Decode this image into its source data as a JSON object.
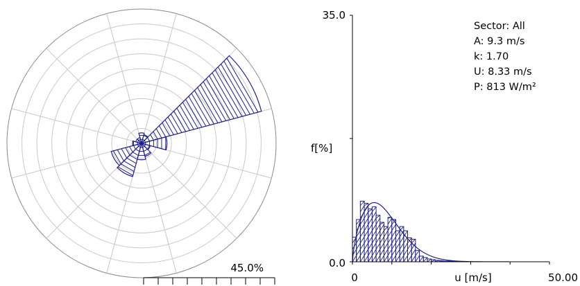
{
  "chart_data": [
    {
      "type": "rose",
      "sector_count": 12,
      "ring_count": 9,
      "scale_label": "45.0%",
      "scale_max": 45.0,
      "sectors": [
        {
          "direction_deg": 0,
          "frequency": 3.5
        },
        {
          "direction_deg": 30,
          "frequency": 3.0
        },
        {
          "direction_deg": 60,
          "frequency": 41.5
        },
        {
          "direction_deg": 90,
          "frequency": 8.5
        },
        {
          "direction_deg": 120,
          "frequency": 3.0
        },
        {
          "direction_deg": 150,
          "frequency": 4.5
        },
        {
          "direction_deg": 180,
          "frequency": 5.5
        },
        {
          "direction_deg": 210,
          "frequency": 11.5
        },
        {
          "direction_deg": 240,
          "frequency": 10.5
        },
        {
          "direction_deg": 270,
          "frequency": 3.0
        },
        {
          "direction_deg": 300,
          "frequency": 2.0
        },
        {
          "direction_deg": 330,
          "frequency": 2.0
        }
      ],
      "color": "#1f1f8f"
    },
    {
      "type": "bar",
      "ylabel": "f[%]",
      "xlabel": "u [m/s]",
      "ylim": [
        0,
        35.0
      ],
      "xlim": [
        0,
        50
      ],
      "y_tick_labels": [
        "0.0",
        "35.0"
      ],
      "x_tick_labels": [
        "0",
        "50.00"
      ],
      "bins": [
        {
          "u": 0,
          "f": 3.5
        },
        {
          "u": 1,
          "f": 6.0
        },
        {
          "u": 2,
          "f": 8.6
        },
        {
          "u": 3,
          "f": 8.3
        },
        {
          "u": 4,
          "f": 7.5
        },
        {
          "u": 5,
          "f": 7.8
        },
        {
          "u": 6,
          "f": 6.6
        },
        {
          "u": 7,
          "f": 5.6
        },
        {
          "u": 8,
          "f": 5.0
        },
        {
          "u": 9,
          "f": 6.3
        },
        {
          "u": 10,
          "f": 6.0
        },
        {
          "u": 11,
          "f": 4.4
        },
        {
          "u": 12,
          "f": 5.0
        },
        {
          "u": 13,
          "f": 4.4
        },
        {
          "u": 14,
          "f": 3.4
        },
        {
          "u": 15,
          "f": 3.2
        },
        {
          "u": 16,
          "f": 1.6
        },
        {
          "u": 17,
          "f": 0.8
        },
        {
          "u": 18,
          "f": 0.6
        },
        {
          "u": 19,
          "f": 0.4
        },
        {
          "u": 20,
          "f": 0.3
        },
        {
          "u": 21,
          "f": 0.2
        },
        {
          "u": 22,
          "f": 0.15
        },
        {
          "u": 23,
          "f": 0.1
        },
        {
          "u": 24,
          "f": 0.1
        },
        {
          "u": 25,
          "f": 0.05
        }
      ],
      "weibull": {
        "A": 9.3,
        "k": 1.7
      },
      "stats": {
        "sector": "Sector: All",
        "A": "A: 9.3 m/s",
        "k": "k: 1.70",
        "U": "U: 8.33 m/s",
        "P": "P: 813 W/m²"
      },
      "color": "#1f1f8f"
    }
  ]
}
